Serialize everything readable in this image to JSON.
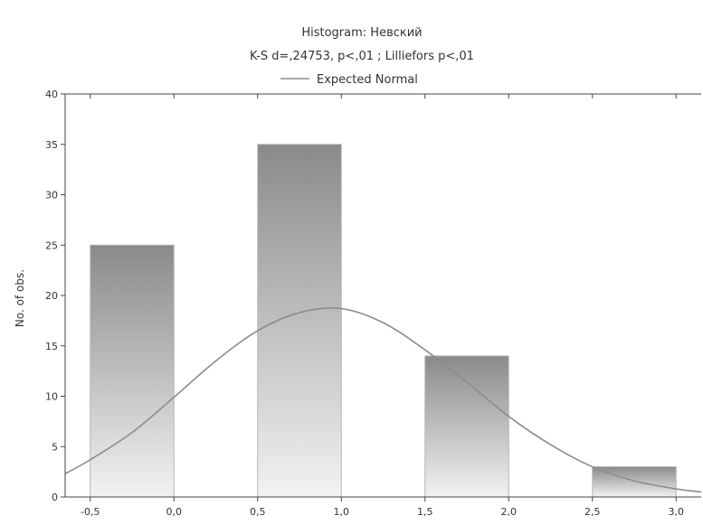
{
  "chart_data": {
    "type": "bar",
    "title": "Histogram: Невский",
    "subtitle": "K-S d=,24753, p<,01 ; Lilliefors p<,01",
    "legend": [
      {
        "label": "Expected Normal",
        "style": "line"
      }
    ],
    "legend_position": "top",
    "xlabel": "",
    "ylabel": "No. of obs.",
    "xlim": [
      -0.65,
      3.15
    ],
    "ylim": [
      0,
      40
    ],
    "x_ticks": [
      -0.5,
      0.0,
      0.5,
      1.0,
      1.5,
      2.0,
      2.5,
      3.0
    ],
    "x_tick_labels": [
      "-0,5",
      "0,0",
      "0,5",
      "1,0",
      "1,5",
      "2,0",
      "2,5",
      "3,0"
    ],
    "y_ticks": [
      0,
      5,
      10,
      15,
      20,
      25,
      30,
      35,
      40
    ],
    "y_tick_labels": [
      "0",
      "5",
      "10",
      "15",
      "20",
      "25",
      "30",
      "35",
      "40"
    ],
    "bins": [
      {
        "x0": -0.5,
        "x1": 0.0,
        "count": 25
      },
      {
        "x0": 0.5,
        "x1": 1.0,
        "count": 35
      },
      {
        "x0": 1.5,
        "x1": 2.0,
        "count": 14
      },
      {
        "x0": 2.5,
        "x1": 3.0,
        "count": 3
      }
    ],
    "expected_normal": {
      "name": "Expected Normal",
      "x": [
        -0.65,
        -0.5,
        -0.25,
        0.0,
        0.25,
        0.5,
        0.75,
        1.0,
        1.25,
        1.5,
        1.75,
        2.0,
        2.25,
        2.5,
        2.75,
        3.0,
        3.15
      ],
      "y": [
        2.3,
        3.7,
        6.4,
        9.9,
        13.5,
        16.5,
        18.3,
        18.7,
        17.3,
        14.6,
        11.4,
        8.0,
        5.2,
        3.0,
        1.6,
        0.8,
        0.5
      ]
    },
    "grid": false,
    "colors": {
      "bar_top": "#8a8a8a",
      "bar_bottom": "#f2f2f2",
      "curve": "#8c8c8c",
      "axis": "#444444"
    }
  }
}
